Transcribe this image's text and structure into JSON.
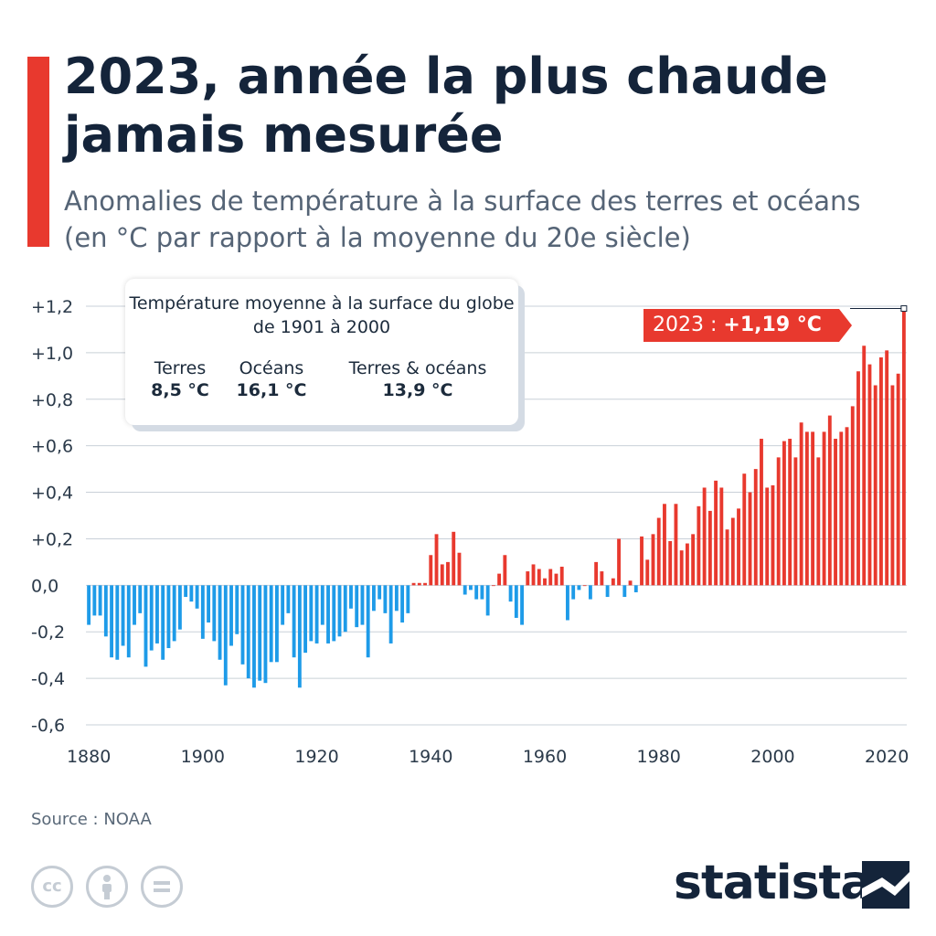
{
  "header": {
    "title": "2023, année la plus chaude jamais mesurée",
    "subtitle": "Anomalies de température à la surface des terres et océans (en °C par rapport à la moyenne du 20e siècle)"
  },
  "info_box": {
    "heading": "Température moyenne à la surface du globe de 1901 à 2000",
    "items": [
      {
        "label": "Terres",
        "value": "8,5 °C"
      },
      {
        "label": "Océans",
        "value": "16,1 °C"
      },
      {
        "label": "Terres & océans",
        "value": "13,9 °C"
      }
    ]
  },
  "callout": {
    "label": "2023 :",
    "value": "+1,19 °C"
  },
  "footer": {
    "source": "Source : NOAA",
    "brand": "statista"
  },
  "license_icons": [
    "cc-icon",
    "attribution-icon",
    "no-derivatives-icon"
  ],
  "colors": {
    "positive": "#e8392e",
    "negative": "#1e9be8",
    "accent": "#e8392e",
    "title": "#14243a",
    "grid": "#c9d0d8"
  },
  "chart_data": {
    "type": "bar",
    "x_start": 1880,
    "x_end": 2023,
    "xticks": [
      1880,
      1900,
      1920,
      1940,
      1960,
      1980,
      2000,
      2020
    ],
    "xtick_labels": [
      "1880",
      "1900",
      "1920",
      "1940",
      "1960",
      "1980",
      "2000",
      "2020"
    ],
    "yticks": [
      -0.6,
      -0.4,
      -0.2,
      0,
      0.2,
      0.4,
      0.6,
      0.8,
      1.0,
      1.2
    ],
    "ytick_labels": [
      "-0,6",
      "-0,4",
      "-0,2",
      "0,0",
      "+0,2",
      "+0,4",
      "+0,6",
      "+0,8",
      "+1,0",
      "+1,2"
    ],
    "ylim": [
      -0.6,
      1.2
    ],
    "grid": true,
    "years": [
      1880,
      1881,
      1882,
      1883,
      1884,
      1885,
      1886,
      1887,
      1888,
      1889,
      1890,
      1891,
      1892,
      1893,
      1894,
      1895,
      1896,
      1897,
      1898,
      1899,
      1900,
      1901,
      1902,
      1903,
      1904,
      1905,
      1906,
      1907,
      1908,
      1909,
      1910,
      1911,
      1912,
      1913,
      1914,
      1915,
      1916,
      1917,
      1918,
      1919,
      1920,
      1921,
      1922,
      1923,
      1924,
      1925,
      1926,
      1927,
      1928,
      1929,
      1930,
      1931,
      1932,
      1933,
      1934,
      1935,
      1936,
      1937,
      1938,
      1939,
      1940,
      1941,
      1942,
      1943,
      1944,
      1945,
      1946,
      1947,
      1948,
      1949,
      1950,
      1951,
      1952,
      1953,
      1954,
      1955,
      1956,
      1957,
      1958,
      1959,
      1960,
      1961,
      1962,
      1963,
      1964,
      1965,
      1966,
      1967,
      1968,
      1969,
      1970,
      1971,
      1972,
      1973,
      1974,
      1975,
      1976,
      1977,
      1978,
      1979,
      1980,
      1981,
      1982,
      1983,
      1984,
      1985,
      1986,
      1987,
      1988,
      1989,
      1990,
      1991,
      1992,
      1993,
      1994,
      1995,
      1996,
      1997,
      1998,
      1999,
      2000,
      2001,
      2002,
      2003,
      2004,
      2005,
      2006,
      2007,
      2008,
      2009,
      2010,
      2011,
      2012,
      2013,
      2014,
      2015,
      2016,
      2017,
      2018,
      2019,
      2020,
      2021,
      2022,
      2023
    ],
    "values": [
      -0.17,
      -0.13,
      -0.13,
      -0.22,
      -0.31,
      -0.32,
      -0.26,
      -0.31,
      -0.17,
      -0.12,
      -0.35,
      -0.28,
      -0.25,
      -0.32,
      -0.27,
      -0.24,
      -0.19,
      -0.05,
      -0.07,
      -0.1,
      -0.23,
      -0.16,
      -0.24,
      -0.32,
      -0.43,
      -0.26,
      -0.21,
      -0.34,
      -0.4,
      -0.44,
      -0.41,
      -0.42,
      -0.33,
      -0.33,
      -0.17,
      -0.12,
      -0.31,
      -0.44,
      -0.29,
      -0.24,
      -0.25,
      -0.17,
      -0.25,
      -0.24,
      -0.22,
      -0.2,
      -0.1,
      -0.18,
      -0.17,
      -0.31,
      -0.11,
      -0.06,
      -0.12,
      -0.25,
      -0.11,
      -0.16,
      -0.12,
      0.01,
      0.01,
      0.01,
      0.13,
      0.22,
      0.09,
      0.1,
      0.23,
      0.14,
      -0.04,
      -0.02,
      -0.06,
      -0.06,
      -0.13,
      0.0,
      0.05,
      0.13,
      -0.07,
      -0.14,
      -0.17,
      0.06,
      0.09,
      0.07,
      0.03,
      0.07,
      0.05,
      0.08,
      -0.15,
      -0.06,
      -0.02,
      0.0,
      -0.06,
      0.1,
      0.06,
      -0.05,
      0.03,
      0.2,
      -0.05,
      0.02,
      -0.03,
      0.21,
      0.11,
      0.22,
      0.29,
      0.35,
      0.19,
      0.35,
      0.15,
      0.18,
      0.22,
      0.34,
      0.42,
      0.32,
      0.45,
      0.42,
      0.24,
      0.29,
      0.33,
      0.48,
      0.4,
      0.5,
      0.63,
      0.42,
      0.43,
      0.55,
      0.62,
      0.63,
      0.55,
      0.7,
      0.66,
      0.66,
      0.55,
      0.66,
      0.73,
      0.63,
      0.66,
      0.68,
      0.77,
      0.92,
      1.03,
      0.95,
      0.86,
      0.98,
      1.01,
      0.86,
      0.91,
      1.19
    ]
  }
}
